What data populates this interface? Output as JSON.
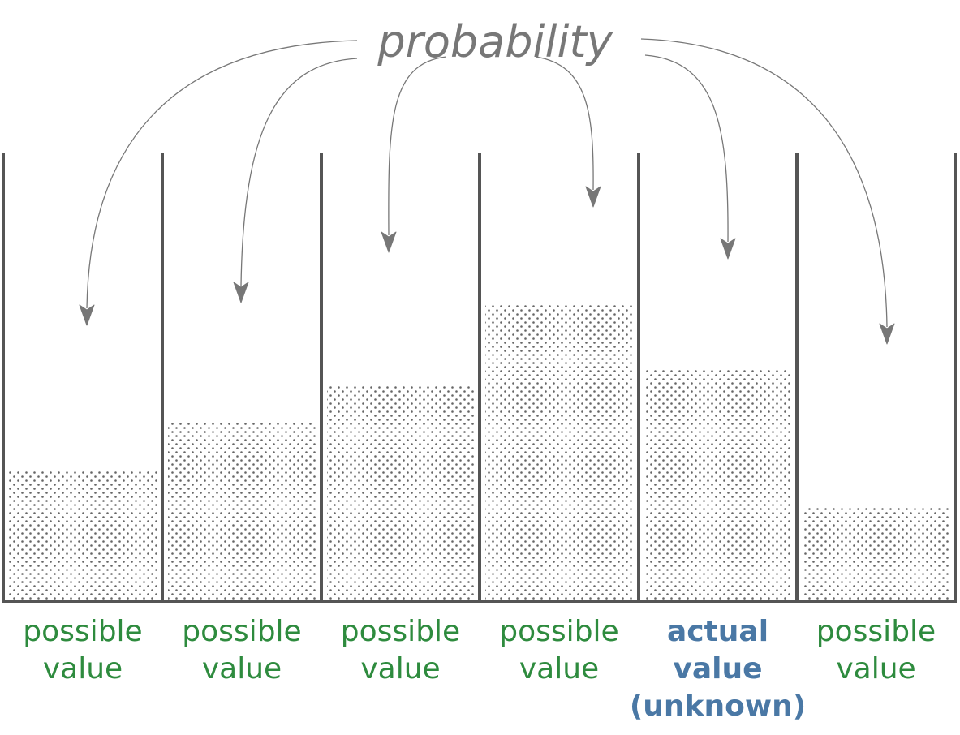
{
  "title": "probability",
  "colors": {
    "title": "#777777",
    "arrow": "#777777",
    "wall": "#555555",
    "dots": "#666666",
    "possible_label": "#2e8b3e",
    "actual_label": "#4a78a5"
  },
  "bins": [
    {
      "label_lines": [
        "possible",
        "value"
      ],
      "kind": "possible",
      "fill_level": 0.29
    },
    {
      "label_lines": [
        "possible",
        "value"
      ],
      "kind": "possible",
      "fill_level": 0.4
    },
    {
      "label_lines": [
        "possible",
        "value"
      ],
      "kind": "possible",
      "fill_level": 0.48
    },
    {
      "label_lines": [
        "possible",
        "value"
      ],
      "kind": "possible",
      "fill_level": 0.66
    },
    {
      "label_lines": [
        "actual",
        "value",
        "(unknown)"
      ],
      "kind": "actual",
      "fill_level": 0.52
    },
    {
      "label_lines": [
        "possible",
        "value"
      ],
      "kind": "possible",
      "fill_level": 0.21
    }
  ]
}
